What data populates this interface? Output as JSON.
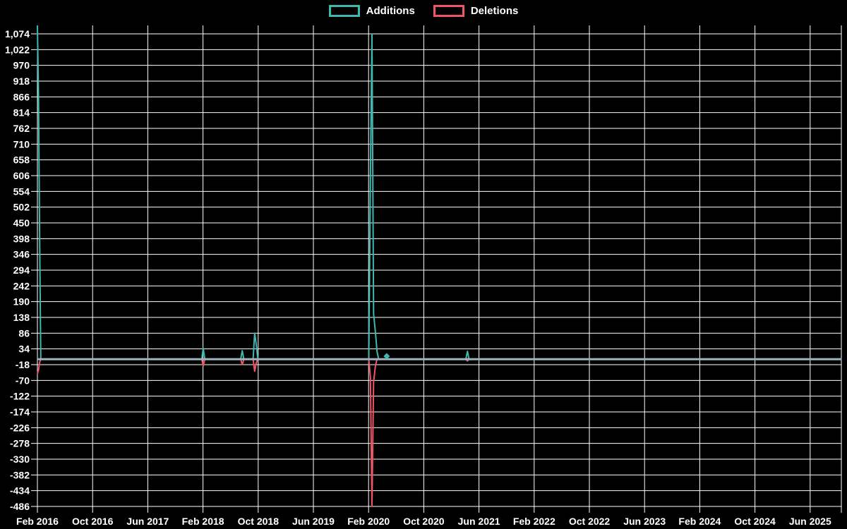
{
  "legend": {
    "items": [
      {
        "label": "Additions",
        "color": "#3eb8b1"
      },
      {
        "label": "Deletions",
        "color": "#ee5566"
      }
    ]
  },
  "chart_data": {
    "type": "line",
    "title": "",
    "xlabel": "",
    "ylabel": "",
    "background": "#000000",
    "grid": true,
    "grid_color": "#ffffff",
    "text_color": "#ffffff",
    "zero_line_color": "#9cb3bd",
    "legend_position": "top-center",
    "x_tick_labels": [
      "Feb 2016",
      "Oct 2016",
      "Jun 2017",
      "Feb 2018",
      "Oct 2018",
      "Jun 2019",
      "Feb 2020",
      "Oct 2020",
      "Jun 2021",
      "Feb 2022",
      "Oct 2022",
      "Jun 2023",
      "Feb 2024",
      "Oct 2024",
      "Jun 2025"
    ],
    "y_tick_values": [
      1074,
      1022,
      970,
      918,
      866,
      814,
      762,
      710,
      658,
      606,
      554,
      502,
      450,
      398,
      346,
      294,
      242,
      190,
      138,
      86,
      34,
      -18,
      -70,
      -122,
      -174,
      -226,
      -278,
      -330,
      -382,
      -434,
      -486
    ],
    "y_tick_labels": [
      "1,074",
      "1,022",
      "970",
      "918",
      "866",
      "814",
      "762",
      "710",
      "658",
      "606",
      "554",
      "502",
      "450",
      "398",
      "346",
      "294",
      "242",
      "190",
      "138",
      "86",
      "34",
      "-18",
      "-70",
      "-122",
      "-174",
      "-226",
      "-278",
      "-330",
      "-382",
      "-434",
      "-486"
    ],
    "ylim": [
      -486,
      1102
    ],
    "x_range_start": "2016-02-01",
    "x_range_end": "2025-10-15",
    "y_step": 52,
    "series": [
      {
        "name": "Additions",
        "color": "#3eb8b1",
        "points": [
          [
            "2016-02-01",
            1100
          ],
          [
            "2016-02-06",
            866
          ],
          [
            "2016-02-11",
            390
          ],
          [
            "2016-02-16",
            0
          ],
          [
            "2018-01-26",
            0
          ],
          [
            "2018-02-02",
            36
          ],
          [
            "2018-02-09",
            0
          ],
          [
            "2018-07-15",
            0
          ],
          [
            "2018-07-22",
            28
          ],
          [
            "2018-07-29",
            0
          ],
          [
            "2018-09-09",
            0
          ],
          [
            "2018-09-16",
            86
          ],
          [
            "2018-09-23",
            48
          ],
          [
            "2018-09-30",
            0
          ],
          [
            "2020-02-02",
            0
          ],
          [
            "2020-02-09",
            600
          ],
          [
            "2020-02-16",
            1074
          ],
          [
            "2020-02-23",
            150
          ],
          [
            "2020-03-01",
            86
          ],
          [
            "2020-03-08",
            25
          ],
          [
            "2020-03-15",
            0
          ],
          [
            "2021-04-04",
            0
          ],
          [
            "2021-04-11",
            26
          ],
          [
            "2021-04-18",
            0
          ],
          [
            "2025-10-15",
            0
          ]
        ],
        "isolated_points": [
          [
            "2020-04-20",
            10
          ]
        ]
      },
      {
        "name": "Deletions",
        "color": "#ee5566",
        "points": [
          [
            "2016-02-01",
            -48
          ],
          [
            "2016-02-06",
            -35
          ],
          [
            "2016-02-11",
            -10
          ],
          [
            "2016-02-16",
            0
          ],
          [
            "2018-01-26",
            0
          ],
          [
            "2018-02-02",
            -22
          ],
          [
            "2018-02-09",
            0
          ],
          [
            "2018-07-15",
            0
          ],
          [
            "2018-07-22",
            -18
          ],
          [
            "2018-07-29",
            0
          ],
          [
            "2018-09-09",
            0
          ],
          [
            "2018-09-16",
            -40
          ],
          [
            "2018-09-23",
            -12
          ],
          [
            "2018-09-30",
            0
          ],
          [
            "2020-02-02",
            0
          ],
          [
            "2020-02-09",
            -60
          ],
          [
            "2020-02-16",
            -486
          ],
          [
            "2020-02-23",
            -75
          ],
          [
            "2020-03-01",
            -20
          ],
          [
            "2020-03-08",
            0
          ],
          [
            "2021-04-04",
            0
          ],
          [
            "2021-04-11",
            -6
          ],
          [
            "2021-04-18",
            0
          ],
          [
            "2025-10-15",
            0
          ]
        ],
        "isolated_points": []
      }
    ]
  }
}
